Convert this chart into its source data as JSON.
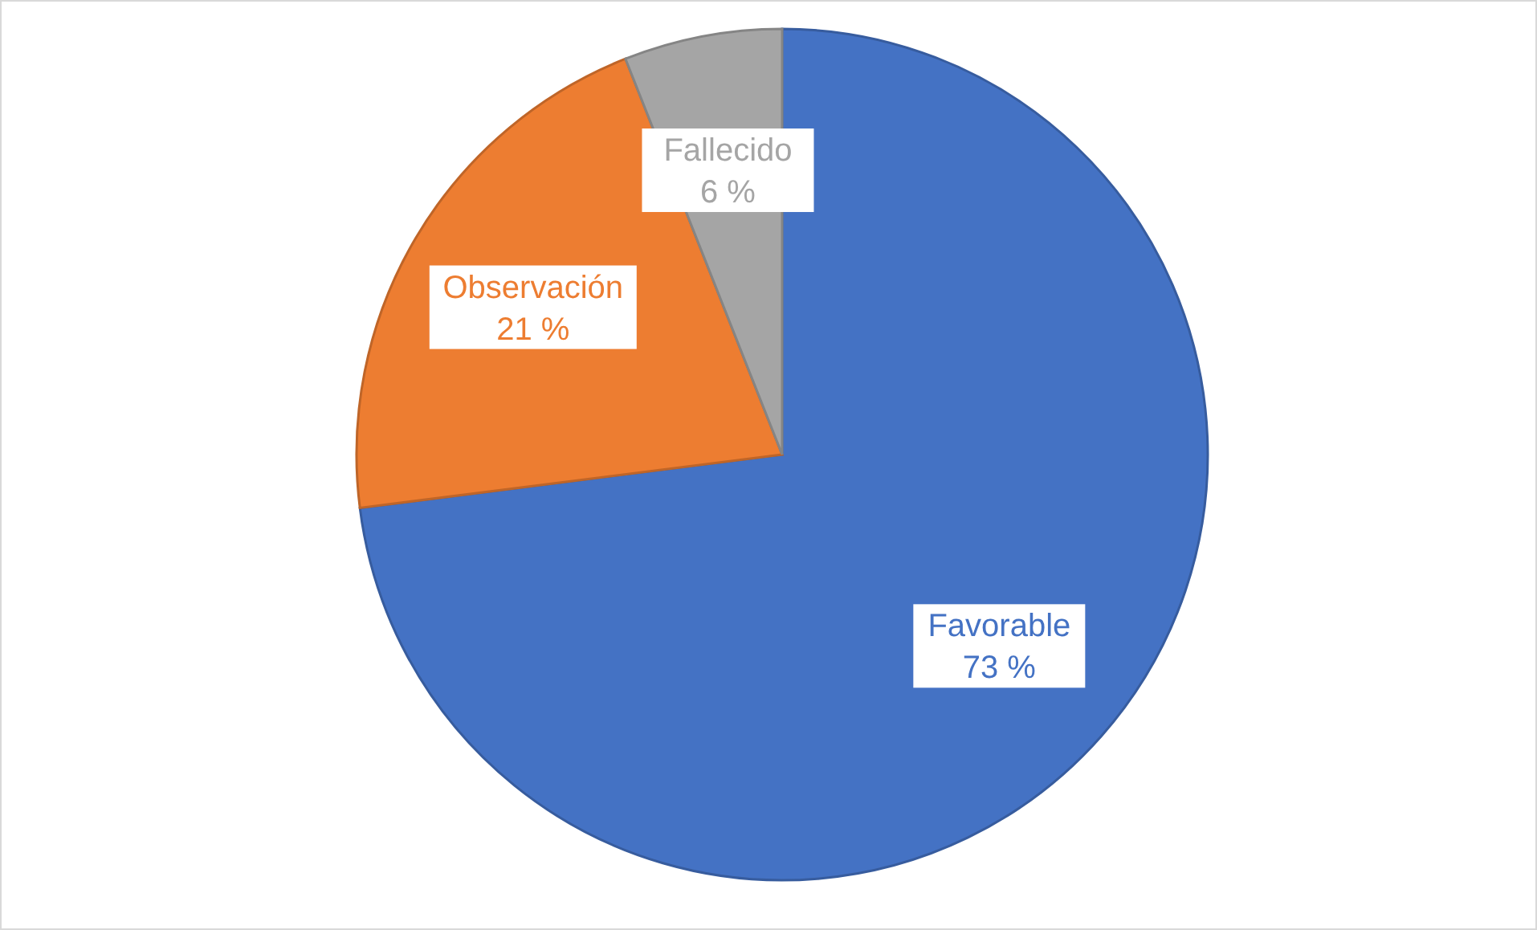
{
  "chart_data": {
    "type": "pie",
    "categories": [
      "Favorable",
      "Observación",
      "Fallecido"
    ],
    "values": [
      73,
      21,
      6
    ],
    "value_labels": [
      "73 %",
      "21 %",
      "6 %"
    ],
    "colors": [
      "#4472c4",
      "#ed7d31",
      "#a5a5a5"
    ]
  }
}
